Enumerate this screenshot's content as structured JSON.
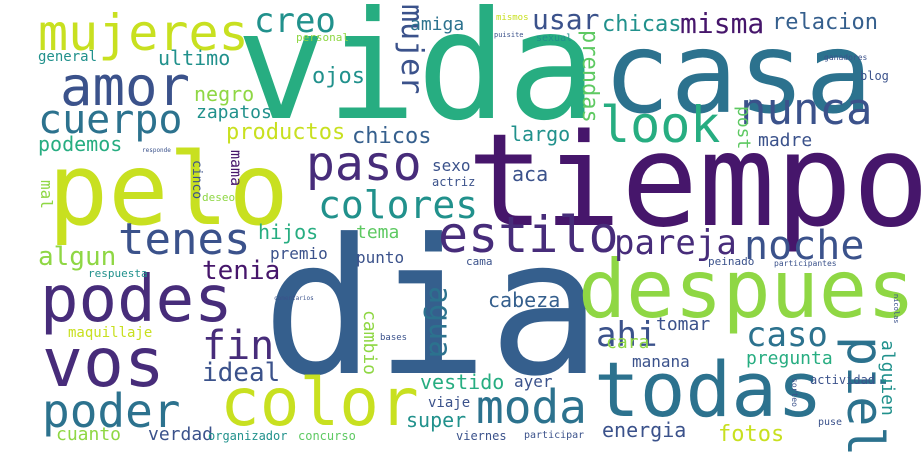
{
  "palette": {
    "dark_purple": "#46166b",
    "purple": "#472c7a",
    "indigo": "#3b528b",
    "blue": "#355f8d",
    "steel": "#2c728e",
    "teal": "#21918c",
    "green_teal": "#27ad81",
    "green": "#5ec962",
    "light_green": "#8fd744",
    "yellow_green": "#c8e020",
    "yellow": "#dde318"
  },
  "words": {
    "vida": "vida",
    "casa": "casa",
    "dia": "dia",
    "tiempo": "tiempo",
    "pelo": "pelo",
    "despues": "despues",
    "todas": "todas",
    "color": "color",
    "vos": "vos",
    "podes": "podes",
    "amor": "amor",
    "mujeres": "mujeres",
    "estilo": "estilo",
    "moda": "moda",
    "look": "look",
    "nunca": "nunca",
    "cuerpo": "cuerpo",
    "paso": "paso",
    "poder": "poder",
    "piel": "piel",
    "noche": "noche",
    "tenes": "tenes",
    "colores": "colores",
    "pareja": "pareja",
    "creo": "creo",
    "caso": "caso",
    "misma": "misma",
    "usar": "usar",
    "relacion": "relacion",
    "fin": "fin",
    "ahi": "ahi",
    "mujer": "mujer",
    "agua": "agua",
    "algun": "algun",
    "ideal": "ideal",
    "tenia": "tenia",
    "productos": "productos",
    "chicas": "chicas",
    "amiga": "amiga",
    "ultimo": "ultimo",
    "ojos": "ojos",
    "negro": "negro",
    "zapatos": "zapatos",
    "podemos": "podemos",
    "chicos": "chicos",
    "largo": "largo",
    "prendas": "prendas",
    "post": "post",
    "madre": "madre",
    "general": "general",
    "personal": "personal",
    "mismos": "mismos",
    "sexual": "sexual",
    "puisite": "puisite",
    "ganadores": "ganadores",
    "blog": "blog",
    "mal": "mal",
    "cinco": "cinco",
    "mama": "mama",
    "deseo": "deseo",
    "sexo": "sexo",
    "actriz": "actriz",
    "aca": "aca",
    "hijos": "hijos",
    "tema": "tema",
    "premio": "premio",
    "punto": "punto",
    "cama": "cama",
    "peinado": "peinado",
    "participantes": "participantes",
    "respuesta": "respuesta",
    "cabeza": "cabeza",
    "tomar": "tomar",
    "cara": "cara",
    "manana": "manana",
    "pregunta": "pregunta",
    "alguien": "alguien",
    "actividad": "actividad",
    "maquillaje": "maquillaje",
    "cambio": "cambio",
    "bases": "bases",
    "vestido": "vestido",
    "ayer": "ayer",
    "viaje": "viaje",
    "super": "super",
    "energia": "energia",
    "fotos": "fotos",
    "cuanto": "cuanto",
    "verdad": "verdad",
    "organizador": "organizador",
    "concurso": "concurso",
    "viernes": "viernes",
    "participar": "participar",
    "sorteo": "sorteo",
    "puse": "puse",
    "responde": "responde",
    "comentarios": "comentarios",
    "nicolas": "nicolas"
  }
}
